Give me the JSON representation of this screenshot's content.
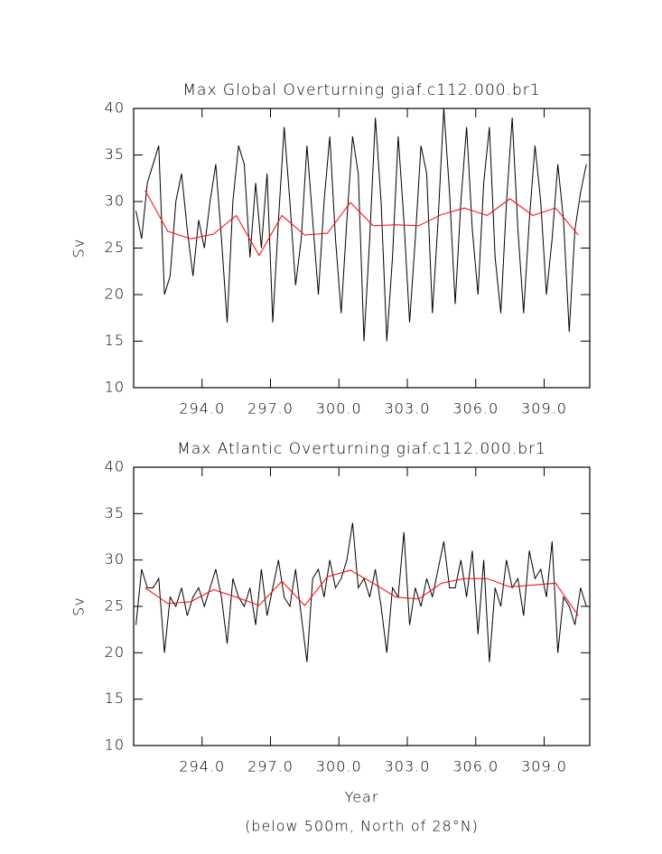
{
  "chart_data": [
    {
      "type": "line",
      "title": "Max Global Overturning giaf.c112.000.br1",
      "ylabel": "Sv",
      "xlim": [
        291,
        311
      ],
      "ylim": [
        10,
        40
      ],
      "xticks": [
        {
          "value": 294,
          "label": "294.0"
        },
        {
          "value": 297,
          "label": "297.0"
        },
        {
          "value": 300,
          "label": "300.0"
        },
        {
          "value": 303,
          "label": "303.0"
        },
        {
          "value": 306,
          "label": "306.0"
        },
        {
          "value": 309,
          "label": "309.0"
        }
      ],
      "yticks": [
        10,
        15,
        20,
        25,
        30,
        35,
        40
      ],
      "series": [
        {
          "color": "#000000",
          "x": [
            291.1,
            291.35,
            291.6,
            291.85,
            292.1,
            292.35,
            292.6,
            292.85,
            293.1,
            293.35,
            293.6,
            293.85,
            294.1,
            294.35,
            294.6,
            294.85,
            295.1,
            295.35,
            295.6,
            295.85,
            296.1,
            296.35,
            296.6,
            296.85,
            297.1,
            297.35,
            297.6,
            297.85,
            298.1,
            298.35,
            298.6,
            298.85,
            299.1,
            299.35,
            299.6,
            299.85,
            300.1,
            300.35,
            300.6,
            300.85,
            301.1,
            301.35,
            301.6,
            301.85,
            302.1,
            302.35,
            302.6,
            302.85,
            303.1,
            303.35,
            303.6,
            303.85,
            304.1,
            304.35,
            304.6,
            304.85,
            305.1,
            305.35,
            305.6,
            305.85,
            306.1,
            306.35,
            306.6,
            306.85,
            307.1,
            307.35,
            307.6,
            307.85,
            308.1,
            308.35,
            308.6,
            308.85,
            309.1,
            309.35,
            309.6,
            309.85,
            310.1,
            310.35,
            310.6,
            310.85
          ],
          "values": [
            29,
            26,
            32,
            34,
            36,
            20,
            22,
            30,
            33,
            27,
            22,
            28,
            25,
            30,
            34,
            26,
            17,
            30,
            36,
            34,
            24,
            32,
            25,
            33,
            17,
            28,
            38,
            30,
            21,
            26,
            36,
            28,
            20,
            30,
            37,
            26,
            18,
            28,
            37,
            33,
            15,
            26,
            39,
            30,
            15,
            24,
            37,
            28,
            17,
            26,
            36,
            33,
            18,
            28,
            40,
            31,
            19,
            30,
            38,
            27,
            20,
            32,
            38,
            24,
            18,
            30,
            39,
            27,
            18,
            28,
            36,
            30,
            20,
            26,
            34,
            28,
            16,
            27,
            31,
            34
          ]
        },
        {
          "color": "#ff0000",
          "x": [
            291.5,
            292.5,
            293.5,
            294.5,
            295.5,
            296.5,
            297.5,
            298.5,
            299.5,
            300.5,
            301.5,
            302.5,
            303.5,
            304.5,
            305.5,
            306.5,
            307.5,
            308.5,
            309.5,
            310.5
          ],
          "values": [
            31.2,
            26.8,
            26.0,
            26.5,
            28.5,
            24.2,
            28.5,
            26.4,
            26.6,
            29.9,
            27.4,
            27.5,
            27.4,
            28.6,
            29.3,
            28.5,
            30.3,
            28.5,
            29.3,
            26.4
          ]
        }
      ]
    },
    {
      "type": "line",
      "title": "Max Atlantic Overturning giaf.c112.000.br1",
      "ylabel": "Sv",
      "xlabel": "Year",
      "note": "(below 500m, North of 28°N)",
      "xlim": [
        291,
        311
      ],
      "ylim": [
        10,
        40
      ],
      "xticks": [
        {
          "value": 294,
          "label": "294.0"
        },
        {
          "value": 297,
          "label": "297.0"
        },
        {
          "value": 300,
          "label": "300.0"
        },
        {
          "value": 303,
          "label": "303.0"
        },
        {
          "value": 306,
          "label": "306.0"
        },
        {
          "value": 309,
          "label": "309.0"
        }
      ],
      "yticks": [
        10,
        15,
        20,
        25,
        30,
        35,
        40
      ],
      "series": [
        {
          "color": "#000000",
          "x": [
            291.1,
            291.35,
            291.6,
            291.85,
            292.1,
            292.35,
            292.6,
            292.85,
            293.1,
            293.35,
            293.6,
            293.85,
            294.1,
            294.35,
            294.6,
            294.85,
            295.1,
            295.35,
            295.6,
            295.85,
            296.1,
            296.35,
            296.6,
            296.85,
            297.1,
            297.35,
            297.6,
            297.85,
            298.1,
            298.35,
            298.6,
            298.85,
            299.1,
            299.35,
            299.6,
            299.85,
            300.1,
            300.35,
            300.6,
            300.85,
            301.1,
            301.35,
            301.6,
            301.85,
            302.1,
            302.35,
            302.6,
            302.85,
            303.1,
            303.35,
            303.6,
            303.85,
            304.1,
            304.35,
            304.6,
            304.85,
            305.1,
            305.35,
            305.6,
            305.85,
            306.1,
            306.35,
            306.6,
            306.85,
            307.1,
            307.35,
            307.6,
            307.85,
            308.1,
            308.35,
            308.6,
            308.85,
            309.1,
            309.35,
            309.6,
            309.85,
            310.1,
            310.35,
            310.6,
            310.85
          ],
          "values": [
            23,
            29,
            27,
            27,
            28,
            20,
            26,
            25,
            27,
            24,
            26,
            27,
            25,
            27,
            29,
            26,
            21,
            28,
            26,
            25,
            27,
            23,
            29,
            24,
            27,
            30,
            26,
            25,
            29,
            24,
            19,
            28,
            29,
            26,
            30,
            27,
            28,
            30,
            34,
            27,
            28,
            26,
            29,
            25,
            20,
            27,
            26,
            33,
            23,
            27,
            25,
            28,
            26,
            29,
            32,
            27,
            27,
            30,
            26,
            31,
            22,
            30,
            19,
            27,
            25,
            30,
            27,
            28,
            24,
            31,
            28,
            29,
            26,
            32,
            20,
            26,
            25,
            23,
            27,
            25
          ]
        },
        {
          "color": "#ff0000",
          "x": [
            291.5,
            292.5,
            293.5,
            294.5,
            295.5,
            296.5,
            297.5,
            298.5,
            299.5,
            300.5,
            301.5,
            302.5,
            303.5,
            304.5,
            305.5,
            306.5,
            307.5,
            308.5,
            309.5,
            310.5
          ],
          "values": [
            27.0,
            25.3,
            25.5,
            26.8,
            26.0,
            25.1,
            27.7,
            25.1,
            28.2,
            28.9,
            27.5,
            26.0,
            25.8,
            27.5,
            28.0,
            28.0,
            27.1,
            27.3,
            27.5,
            24.0
          ]
        }
      ]
    }
  ]
}
